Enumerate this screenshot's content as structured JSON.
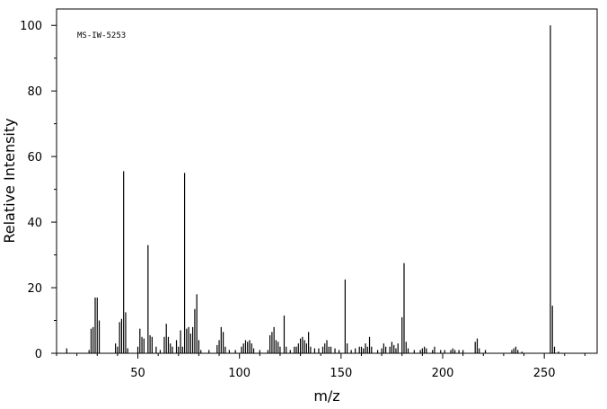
{
  "chart_data": {
    "type": "stem",
    "annotation": "MS-IW-5253",
    "x_label": "m/z",
    "y_label": "Relative Intensity",
    "xlim": [
      10,
      276
    ],
    "ylim": [
      0,
      105
    ],
    "xticks": [
      50,
      100,
      150,
      200,
      250
    ],
    "yticks": [
      0,
      20,
      40,
      60,
      80,
      100
    ],
    "xminorticks": [
      10,
      20,
      30,
      40,
      60,
      70,
      80,
      90,
      110,
      120,
      130,
      140,
      160,
      170,
      180,
      190,
      210,
      220,
      230,
      240,
      260,
      270
    ],
    "yminorticks": [
      10,
      30,
      50,
      70,
      90
    ],
    "color": "#000000",
    "x": [
      15,
      26,
      27,
      28,
      29,
      30,
      31,
      39,
      40,
      41,
      42,
      43,
      44,
      45,
      50,
      51,
      52,
      53,
      55,
      56,
      57,
      59,
      61,
      63,
      64,
      65,
      66,
      67,
      69,
      70,
      71,
      72,
      73,
      74,
      75,
      76,
      77,
      78,
      79,
      80,
      81,
      85,
      89,
      90,
      91,
      92,
      93,
      95,
      98,
      101,
      102,
      103,
      104,
      105,
      106,
      107,
      110,
      114,
      115,
      116,
      117,
      118,
      119,
      120,
      122,
      123,
      125,
      127,
      128,
      129,
      130,
      131,
      132,
      133,
      134,
      135,
      137,
      139,
      141,
      142,
      143,
      144,
      145,
      147,
      149,
      152,
      153,
      155,
      157,
      159,
      160,
      161,
      162,
      163,
      164,
      165,
      168,
      170,
      171,
      172,
      174,
      175,
      176,
      177,
      178,
      180,
      181,
      182,
      183,
      186,
      189,
      190,
      191,
      192,
      195,
      196,
      199,
      201,
      204,
      205,
      206,
      208,
      210,
      216,
      217,
      218,
      221,
      234,
      235,
      236,
      237,
      239,
      253,
      254,
      255,
      257
    ],
    "values": [
      1.5,
      1,
      7.5,
      8,
      17,
      17,
      10,
      3,
      2,
      9.5,
      10.5,
      55.5,
      12.5,
      1.5,
      2,
      7.5,
      5,
      4.5,
      33,
      5.5,
      5,
      2,
      1,
      5,
      9,
      5,
      3,
      2,
      4,
      2,
      7,
      2,
      55,
      7.5,
      8,
      6,
      8,
      13.5,
      18,
      4,
      1,
      1,
      2.5,
      4,
      8,
      6.5,
      2,
      1,
      1,
      2,
      3,
      4,
      3.5,
      4,
      3,
      1.5,
      1,
      1,
      5.5,
      6.5,
      8,
      4,
      3.5,
      2,
      11.5,
      2,
      1,
      2,
      2,
      3,
      4.5,
      5,
      4,
      3,
      6.5,
      2,
      1.5,
      1.5,
      2,
      3,
      4,
      2,
      2,
      1.5,
      1,
      22.5,
      3,
      1,
      1.5,
      2,
      2,
      1.5,
      3,
      2,
      5,
      2,
      1,
      1.5,
      3,
      2,
      2,
      3.5,
      2.5,
      1.5,
      3,
      11,
      27.5,
      3.5,
      1.5,
      1,
      1,
      1.5,
      2,
      1.5,
      1,
      2,
      1,
      1,
      1,
      1.5,
      1,
      1,
      1,
      3.5,
      4.5,
      1.5,
      1,
      1,
      1.5,
      2,
      1,
      0.5,
      100,
      14.5,
      2,
      0.5
    ]
  }
}
